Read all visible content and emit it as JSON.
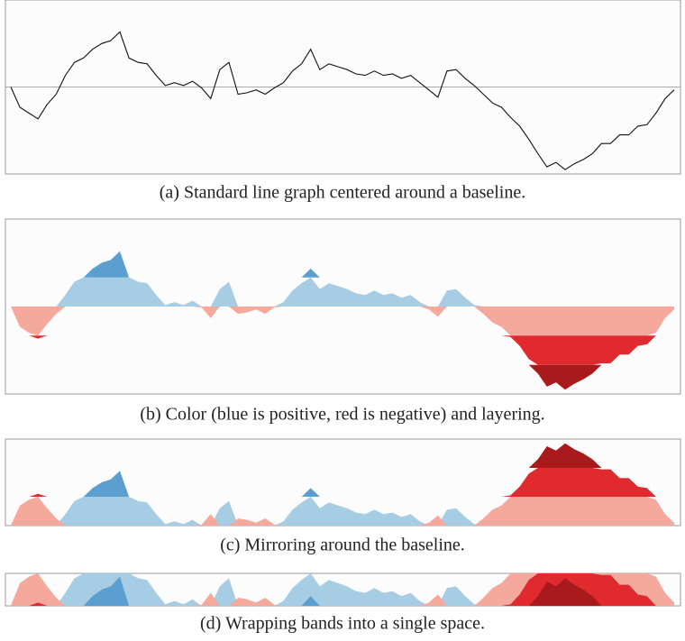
{
  "chart_data": {
    "type": "horizon",
    "values": [
      0,
      -0.7,
      -0.9,
      -1.1,
      -0.6,
      -0.25,
      0.4,
      0.85,
      1.0,
      1.3,
      1.5,
      1.6,
      1.9,
      1.0,
      0.85,
      0.8,
      0.4,
      0.05,
      0.15,
      0.05,
      0.2,
      -0.03,
      -0.4,
      0.6,
      0.85,
      -0.25,
      -0.2,
      -0.1,
      -0.25,
      -0.03,
      0.15,
      0.55,
      0.8,
      1.3,
      0.6,
      0.8,
      0.7,
      0.6,
      0.45,
      0.4,
      0.55,
      0.4,
      0.45,
      0.3,
      0.4,
      0.15,
      -0.1,
      -0.35,
      0.55,
      0.6,
      0.3,
      0.05,
      -0.25,
      -0.55,
      -0.7,
      -1.05,
      -1.35,
      -1.8,
      -2.3,
      -2.75,
      -2.6,
      -2.85,
      -2.65,
      -2.5,
      -2.3,
      -1.95,
      -1.95,
      -1.65,
      -1.65,
      -1.35,
      -1.3,
      -0.9,
      -0.4,
      -0.1
    ],
    "ylim": [
      -3,
      3
    ],
    "band": 1,
    "bands": 3,
    "line_color": "#111111",
    "baseline_color": "#aaaaaa",
    "positive_colors": [
      "#a6cde3",
      "#5a9fd0",
      "#2474bb"
    ],
    "negative_colors": [
      "#f5a89c",
      "#e12a2e",
      "#a91a1d"
    ],
    "panels": [
      {
        "mode": "line",
        "caption": "(a)  Standard line graph centered around a baseline."
      },
      {
        "mode": "offset",
        "caption": "(b)  Color (blue is positive, red is negative) and layering."
      },
      {
        "mode": "mirror",
        "caption": "(c)  Mirroring around the baseline."
      },
      {
        "mode": "wrap",
        "caption": "(d)  Wrapping bands into a single space."
      }
    ]
  }
}
